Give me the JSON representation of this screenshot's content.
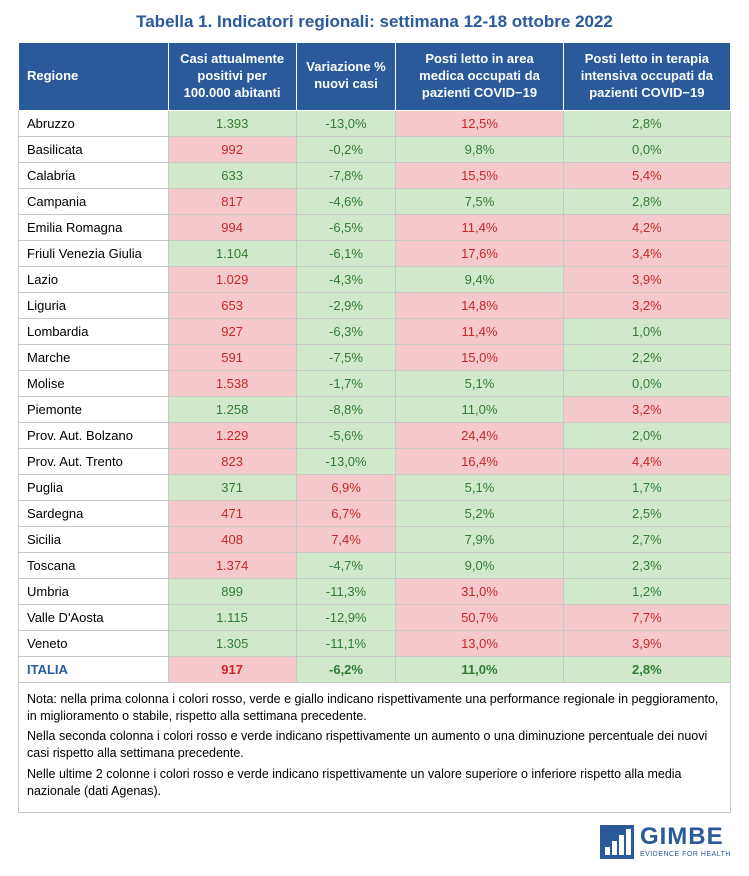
{
  "title": "Tabella 1. Indicatori regionali: settimana 12-18 ottobre 2022",
  "colors": {
    "header_bg": "#2a5a9a",
    "title_color": "#2a5a9a",
    "green": "#d1e9cb",
    "red": "#f5c9cc",
    "text_green": "#2f7d32",
    "text_red": "#c62828",
    "logo": "#2a5a9a"
  },
  "headers": [
    "Regione",
    "Casi attualmente positivi per 100.000 abitanti",
    "Variazione % nuovi casi",
    "Posti letto in area medica occupati da pazienti COVID−19",
    "Posti letto in terapia intensiva occupati da pazienti COVID−19"
  ],
  "col_widths": [
    "21%",
    "18%",
    "14%",
    "23.5%",
    "23.5%"
  ],
  "rows": [
    {
      "region": "Abruzzo",
      "cells": [
        {
          "v": "1.393",
          "bg": "green"
        },
        {
          "v": "-13,0%",
          "bg": "green"
        },
        {
          "v": "12,5%",
          "bg": "red"
        },
        {
          "v": "2,8%",
          "bg": "green"
        }
      ]
    },
    {
      "region": "Basilicata",
      "cells": [
        {
          "v": "992",
          "bg": "red"
        },
        {
          "v": "-0,2%",
          "bg": "green"
        },
        {
          "v": "9,8%",
          "bg": "green"
        },
        {
          "v": "0,0%",
          "bg": "green"
        }
      ]
    },
    {
      "region": "Calabria",
      "cells": [
        {
          "v": "633",
          "bg": "green"
        },
        {
          "v": "-7,8%",
          "bg": "green"
        },
        {
          "v": "15,5%",
          "bg": "red"
        },
        {
          "v": "5,4%",
          "bg": "red"
        }
      ]
    },
    {
      "region": "Campania",
      "cells": [
        {
          "v": "817",
          "bg": "red"
        },
        {
          "v": "-4,6%",
          "bg": "green"
        },
        {
          "v": "7,5%",
          "bg": "green"
        },
        {
          "v": "2,8%",
          "bg": "green"
        }
      ]
    },
    {
      "region": "Emilia Romagna",
      "cells": [
        {
          "v": "994",
          "bg": "red"
        },
        {
          "v": "-6,5%",
          "bg": "green"
        },
        {
          "v": "11,4%",
          "bg": "red"
        },
        {
          "v": "4,2%",
          "bg": "red"
        }
      ]
    },
    {
      "region": "Friuli Venezia Giulia",
      "cells": [
        {
          "v": "1.104",
          "bg": "green"
        },
        {
          "v": "-6,1%",
          "bg": "green"
        },
        {
          "v": "17,6%",
          "bg": "red"
        },
        {
          "v": "3,4%",
          "bg": "red"
        }
      ]
    },
    {
      "region": "Lazio",
      "cells": [
        {
          "v": "1.029",
          "bg": "red"
        },
        {
          "v": "-4,3%",
          "bg": "green"
        },
        {
          "v": "9,4%",
          "bg": "green"
        },
        {
          "v": "3,9%",
          "bg": "red"
        }
      ]
    },
    {
      "region": "Liguria",
      "cells": [
        {
          "v": "653",
          "bg": "red"
        },
        {
          "v": "-2,9%",
          "bg": "green"
        },
        {
          "v": "14,8%",
          "bg": "red"
        },
        {
          "v": "3,2%",
          "bg": "red"
        }
      ]
    },
    {
      "region": "Lombardia",
      "cells": [
        {
          "v": "927",
          "bg": "red"
        },
        {
          "v": "-6,3%",
          "bg": "green"
        },
        {
          "v": "11,4%",
          "bg": "red"
        },
        {
          "v": "1,0%",
          "bg": "green"
        }
      ]
    },
    {
      "region": "Marche",
      "cells": [
        {
          "v": "591",
          "bg": "red"
        },
        {
          "v": "-7,5%",
          "bg": "green"
        },
        {
          "v": "15,0%",
          "bg": "red"
        },
        {
          "v": "2,2%",
          "bg": "green"
        }
      ]
    },
    {
      "region": "Molise",
      "cells": [
        {
          "v": "1.538",
          "bg": "red"
        },
        {
          "v": "-1,7%",
          "bg": "green"
        },
        {
          "v": "5,1%",
          "bg": "green"
        },
        {
          "v": "0,0%",
          "bg": "green"
        }
      ]
    },
    {
      "region": "Piemonte",
      "cells": [
        {
          "v": "1.258",
          "bg": "green"
        },
        {
          "v": "-8,8%",
          "bg": "green"
        },
        {
          "v": "11,0%",
          "bg": "green"
        },
        {
          "v": "3,2%",
          "bg": "red"
        }
      ]
    },
    {
      "region": "Prov. Aut. Bolzano",
      "cells": [
        {
          "v": "1.229",
          "bg": "red"
        },
        {
          "v": "-5,6%",
          "bg": "green"
        },
        {
          "v": "24,4%",
          "bg": "red"
        },
        {
          "v": "2,0%",
          "bg": "green"
        }
      ]
    },
    {
      "region": "Prov. Aut. Trento",
      "cells": [
        {
          "v": "823",
          "bg": "red"
        },
        {
          "v": "-13,0%",
          "bg": "green"
        },
        {
          "v": "16,4%",
          "bg": "red"
        },
        {
          "v": "4,4%",
          "bg": "red"
        }
      ]
    },
    {
      "region": "Puglia",
      "cells": [
        {
          "v": "371",
          "bg": "green"
        },
        {
          "v": "6,9%",
          "bg": "red"
        },
        {
          "v": "5,1%",
          "bg": "green"
        },
        {
          "v": "1,7%",
          "bg": "green"
        }
      ]
    },
    {
      "region": "Sardegna",
      "cells": [
        {
          "v": "471",
          "bg": "red"
        },
        {
          "v": "6,7%",
          "bg": "red"
        },
        {
          "v": "5,2%",
          "bg": "green"
        },
        {
          "v": "2,5%",
          "bg": "green"
        }
      ]
    },
    {
      "region": "Sicilia",
      "cells": [
        {
          "v": "408",
          "bg": "red"
        },
        {
          "v": "7,4%",
          "bg": "red"
        },
        {
          "v": "7,9%",
          "bg": "green"
        },
        {
          "v": "2,7%",
          "bg": "green"
        }
      ]
    },
    {
      "region": "Toscana",
      "cells": [
        {
          "v": "1.374",
          "bg": "red"
        },
        {
          "v": "-4,7%",
          "bg": "green"
        },
        {
          "v": "9,0%",
          "bg": "green"
        },
        {
          "v": "2,3%",
          "bg": "green"
        }
      ]
    },
    {
      "region": "Umbria",
      "cells": [
        {
          "v": "899",
          "bg": "green"
        },
        {
          "v": "-11,3%",
          "bg": "green"
        },
        {
          "v": "31,0%",
          "bg": "red"
        },
        {
          "v": "1,2%",
          "bg": "green"
        }
      ]
    },
    {
      "region": "Valle D'Aosta",
      "cells": [
        {
          "v": "1.115",
          "bg": "green"
        },
        {
          "v": "-12,9%",
          "bg": "green"
        },
        {
          "v": "50,7%",
          "bg": "red"
        },
        {
          "v": "7,7%",
          "bg": "red"
        }
      ]
    },
    {
      "region": "Veneto",
      "cells": [
        {
          "v": "1.305",
          "bg": "green"
        },
        {
          "v": "-11,1%",
          "bg": "green"
        },
        {
          "v": "13,0%",
          "bg": "red"
        },
        {
          "v": "3,9%",
          "bg": "red"
        }
      ]
    }
  ],
  "total": {
    "region": "ITALIA",
    "cells": [
      {
        "v": "917",
        "bg": "red",
        "tc": "text_red"
      },
      {
        "v": "-6,2%",
        "bg": "green",
        "tc": "text_green"
      },
      {
        "v": "11,0%",
        "bg": "green",
        "tc": "text_green"
      },
      {
        "v": "2,8%",
        "bg": "green",
        "tc": "text_green"
      }
    ]
  },
  "notes": [
    "Nota: nella prima colonna i colori rosso, verde e giallo indicano rispettivamente una performance regionale in peggioramento, in miglioramento o stabile, rispetto alla settimana precedente.",
    "Nella seconda colonna i colori rosso e verde indicano rispettivamente un aumento o una diminuzione percentuale dei nuovi casi rispetto alla settimana precedente.",
    "Nelle ultime 2 colonne i colori rosso e verde indicano rispettivamente un valore superiore o inferiore rispetto alla media nazionale (dati Agenas)."
  ],
  "logo": {
    "text": "GIMBE",
    "sub": "EVIDENCE FOR HEALTH"
  }
}
